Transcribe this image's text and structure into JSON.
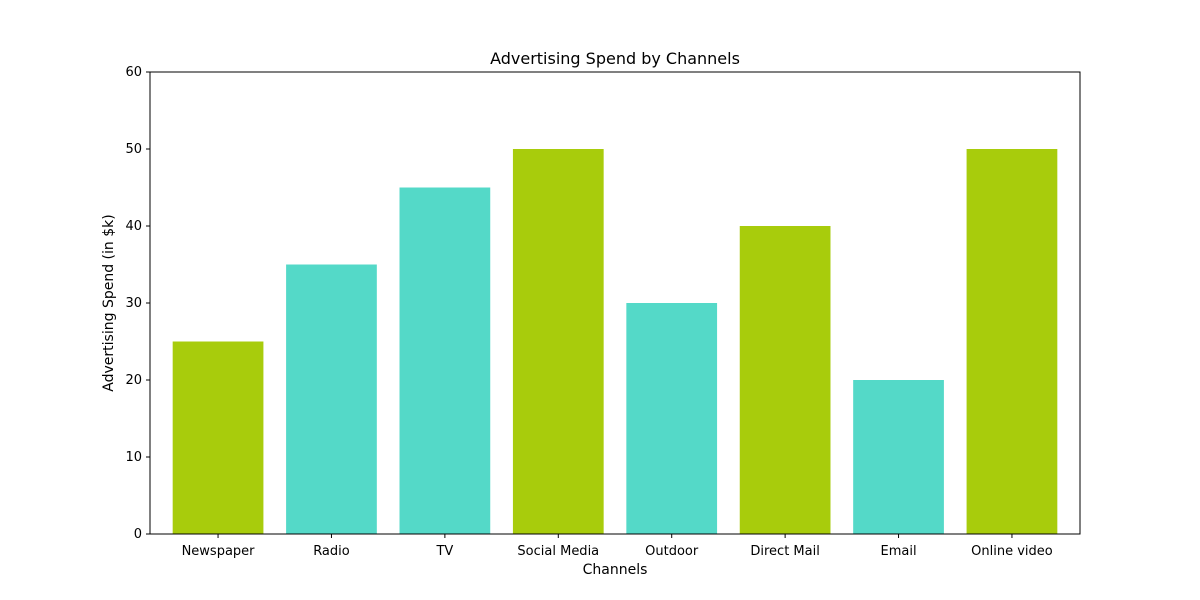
{
  "chart_data": {
    "type": "bar",
    "title": "Advertising Spend by Channels",
    "xlabel": "Channels",
    "ylabel": "Advertising Spend (in $k)",
    "categories": [
      "Newspaper",
      "Radio",
      "TV",
      "Social Media",
      "Outdoor",
      "Direct Mail",
      "Email",
      "Online video"
    ],
    "values": [
      25,
      35,
      45,
      50,
      30,
      40,
      20,
      50
    ],
    "bar_colors": [
      "#a8cc0c",
      "#54d9c8",
      "#54d9c8",
      "#a8cc0c",
      "#54d9c8",
      "#a8cc0c",
      "#54d9c8",
      "#a8cc0c"
    ],
    "ylim": [
      0,
      60
    ],
    "yticks": [
      0,
      10,
      20,
      30,
      40,
      50,
      60
    ],
    "grid": false,
    "legend": "none"
  }
}
